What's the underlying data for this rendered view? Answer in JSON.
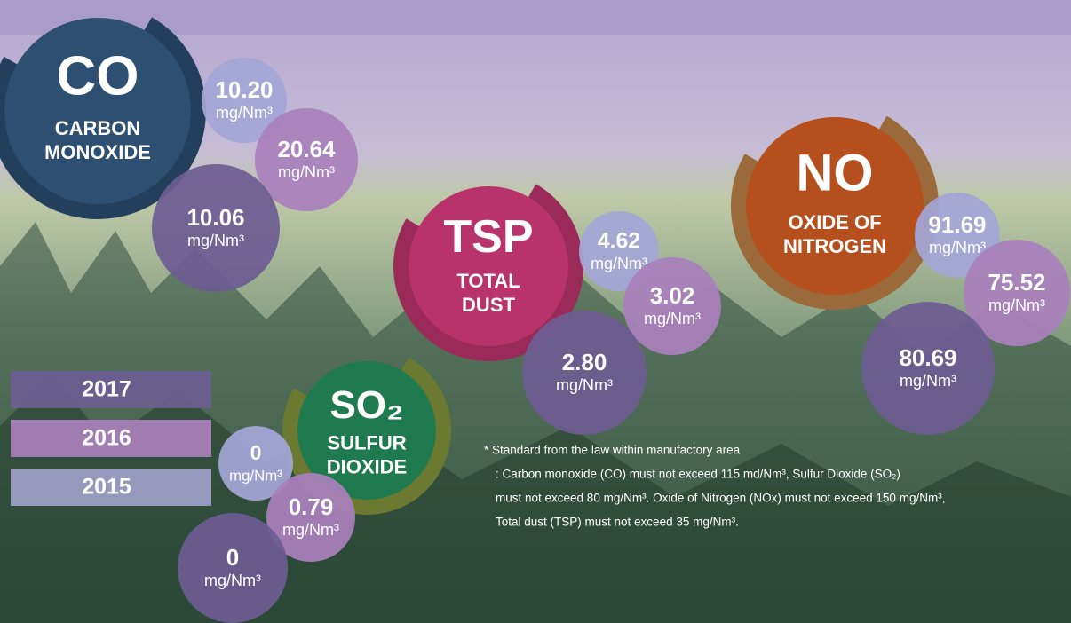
{
  "legend": [
    "2017",
    "2016",
    "2015"
  ],
  "unit": "mg/Nm³",
  "pollutants": [
    {
      "symbol": "CO",
      "name": [
        "CARBON",
        "MONOXIDE"
      ],
      "readings": [
        "10.20",
        "20.64",
        "10.06"
      ]
    },
    {
      "symbol": "TSP",
      "name": [
        "TOTAL",
        "DUST"
      ],
      "readings": [
        "4.62",
        "3.02",
        "2.80"
      ]
    },
    {
      "symbol": "NO",
      "name": [
        "OXIDE OF",
        "NITROGEN"
      ],
      "readings": [
        "91.69",
        "75.52",
        "80.69"
      ]
    },
    {
      "symbol": "SO₂",
      "name": [
        "SULFUR",
        "DIOXIDE"
      ],
      "readings": [
        "0",
        "0.79",
        "0"
      ]
    }
  ],
  "note": [
    "* Standard from the law within manufactory area",
    ": Carbon monoxide (CO) must not exceed 115 md/Nm³, Sulfur Dioxide (SO₂)",
    "must not exceed 80 mg/Nm³. Oxide of Nitrogen (NOx) must not exceed 150 mg/Nm³,",
    "Total dust (TSP) must not exceed 35 mg/Nm³."
  ]
}
